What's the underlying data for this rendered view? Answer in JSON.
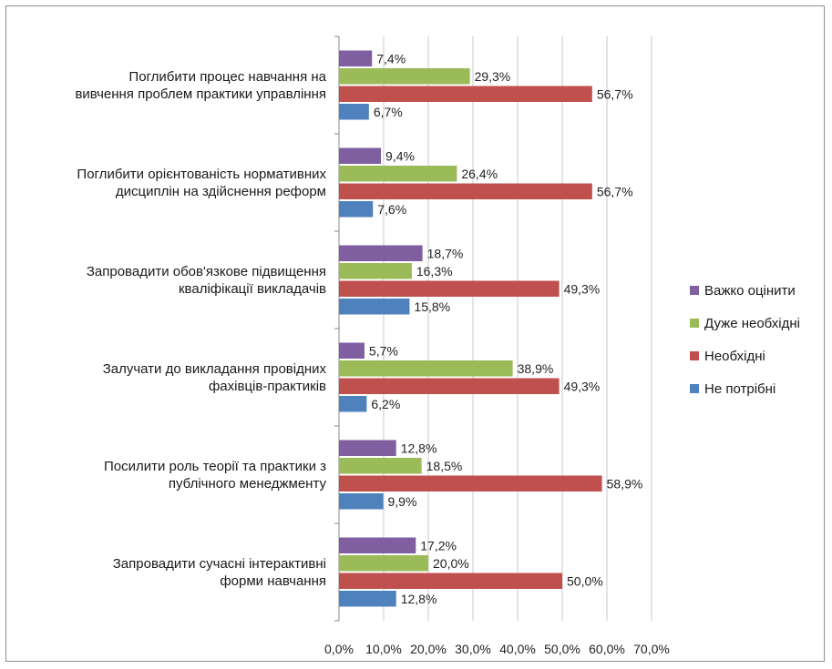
{
  "chart_data": {
    "type": "bar",
    "orientation": "horizontal",
    "categories": [
      [
        "Поглибити процес навчання на",
        "вивчення проблем практики управління"
      ],
      [
        "Поглибити орієнтованість нормативних",
        "дисциплін на здійснення реформ"
      ],
      [
        "Запровадити обов'язкове підвищення",
        "кваліфікації викладачів"
      ],
      [
        "Залучати до викладання провідних",
        "фахівців-практиків"
      ],
      [
        "Посилити роль теорії та практики з",
        "публічного менеджменту"
      ],
      [
        "Запровадити сучасні інтерактивні",
        "форми навчання"
      ]
    ],
    "series": [
      {
        "name": "Важко оцінити",
        "color": "#7f5fa0",
        "values": [
          7.4,
          9.4,
          18.7,
          5.7,
          12.8,
          17.2
        ],
        "labels": [
          "7,4%",
          "9,4%",
          "18,7%",
          "5,7%",
          "12,8%",
          "17,2%"
        ]
      },
      {
        "name": "Дуже необхідні",
        "color": "#9bbb59",
        "values": [
          29.3,
          26.4,
          16.3,
          38.9,
          18.5,
          20.0
        ],
        "labels": [
          "29,3%",
          "26,4%",
          "16,3%",
          "38,9%",
          "18,5%",
          "20,0%"
        ]
      },
      {
        "name": "Необхідні",
        "color": "#c0504d",
        "values": [
          56.7,
          56.7,
          49.3,
          49.3,
          58.9,
          50.0
        ],
        "labels": [
          "56,7%",
          "56,7%",
          "49,3%",
          "49,3%",
          "58,9%",
          "50,0%"
        ]
      },
      {
        "name": "Не потрібні",
        "color": "#4f81bd",
        "values": [
          6.7,
          7.6,
          15.8,
          6.2,
          9.9,
          12.8
        ],
        "labels": [
          "6,7%",
          "7,6%",
          "15,8%",
          "6,2%",
          "9,9%",
          "12,8%"
        ]
      }
    ],
    "xlim": [
      0,
      70
    ],
    "xticks": [
      "0,0%",
      "10,0%",
      "20,0%",
      "30,0%",
      "40,0%",
      "50,0%",
      "60,0%",
      "70,0%"
    ],
    "grid": true,
    "legend_position": "right"
  }
}
